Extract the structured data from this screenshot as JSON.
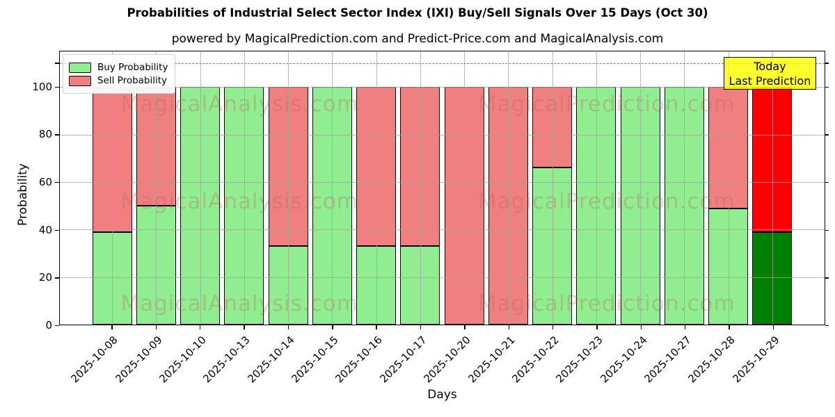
{
  "title": "Probabilities of Industrial Select Sector Index (IXI) Buy/Sell Signals Over 15 Days (Oct 30)",
  "subtitle": "powered by MagicalPrediction.com and Predict-Price.com and MagicalAnalysis.com",
  "chart_data": {
    "type": "bar",
    "stacked": true,
    "title": "Probabilities of Industrial Select Sector Index (IXI) Buy/Sell Signals Over 15 Days (Oct 30)",
    "xlabel": "Days",
    "ylabel": "Probability",
    "categories": [
      "2025-10-08",
      "2025-10-09",
      "2025-10-10",
      "2025-10-13",
      "2025-10-14",
      "2025-10-15",
      "2025-10-16",
      "2025-10-17",
      "2025-10-20",
      "2025-10-21",
      "2025-10-22",
      "2025-10-23",
      "2025-10-24",
      "2025-10-27",
      "2025-10-28",
      "2025-10-29"
    ],
    "series": [
      {
        "name": "Buy Probability",
        "color": "#90ee90",
        "today_color": "#008000",
        "values": [
          39,
          50,
          100,
          100,
          33,
          100,
          33,
          33,
          0,
          0,
          66,
          100,
          100,
          100,
          49,
          39
        ]
      },
      {
        "name": "Sell Probability",
        "color": "#f08080",
        "today_color": "#ff0000",
        "values": [
          61,
          50,
          0,
          0,
          67,
          0,
          67,
          67,
          100,
          100,
          34,
          0,
          0,
          0,
          51,
          61
        ]
      }
    ],
    "yticks": [
      0,
      20,
      40,
      60,
      80,
      100
    ],
    "ylim": [
      0,
      115
    ],
    "dashed_line_y": 110,
    "grid": true,
    "legend_position": "upper-left",
    "today_index": 15
  },
  "legend": {
    "items": [
      {
        "label": "Buy Probability",
        "color": "#90ee90"
      },
      {
        "label": "Sell Probability",
        "color": "#f08080"
      }
    ]
  },
  "annotation": {
    "line1": "Today",
    "line2": "Last Prediction",
    "bg_color": "#ffff00"
  },
  "watermarks": {
    "left_text": "MagicalAnalysis.com",
    "right_text": "MagicalPrediction.com"
  },
  "colors": {
    "buy": "#90ee90",
    "sell": "#f08080",
    "today_buy": "#008000",
    "today_sell": "#ff0000",
    "annotation_bg": "#ffff00"
  }
}
